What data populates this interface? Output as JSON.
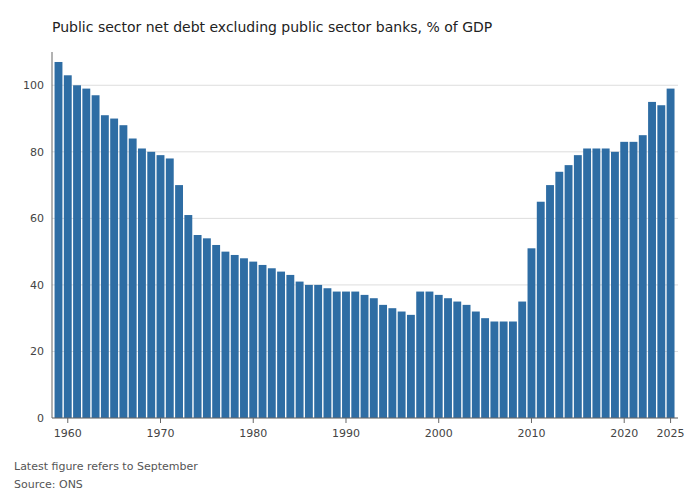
{
  "chart_data": {
    "type": "bar",
    "title": "Public sector net debt excluding public sector banks, % of GDP",
    "annotations": [
      "Latest figure refers to September",
      "Source: ONS"
    ],
    "x": [
      1959,
      1960,
      1961,
      1962,
      1963,
      1964,
      1965,
      1966,
      1967,
      1968,
      1969,
      1970,
      1971,
      1972,
      1973,
      1974,
      1975,
      1976,
      1977,
      1978,
      1979,
      1980,
      1981,
      1982,
      1983,
      1984,
      1985,
      1986,
      1987,
      1988,
      1989,
      1990,
      1991,
      1992,
      1993,
      1994,
      1995,
      1996,
      1997,
      1998,
      1999,
      2000,
      2001,
      2002,
      2003,
      2004,
      2005,
      2006,
      2007,
      2008,
      2009,
      2010,
      2011,
      2012,
      2013,
      2014,
      2015,
      2016,
      2017,
      2018,
      2019,
      2020,
      2021,
      2022,
      2023,
      2024,
      2025
    ],
    "values": [
      107,
      103,
      100,
      99,
      97,
      91,
      90,
      88,
      84,
      81,
      80,
      79,
      78,
      70,
      61,
      55,
      54,
      52,
      50,
      49,
      48,
      47,
      46,
      45,
      44,
      43,
      41,
      40,
      40,
      39,
      38,
      38,
      38,
      37,
      36,
      34,
      33,
      32,
      31,
      38,
      38,
      37,
      36,
      35,
      34,
      32,
      30,
      29,
      29,
      29,
      35,
      51,
      65,
      70,
      74,
      76,
      79,
      81,
      81,
      81,
      80,
      83,
      83,
      85,
      95,
      94,
      99
    ],
    "color": "#2e6da4",
    "xlim": [
      1958.3,
      2025.8
    ],
    "xticks": [
      1960,
      1970,
      1980,
      1990,
      2000,
      2010,
      2020,
      2025
    ],
    "ylim": [
      0,
      110
    ],
    "yticks": [
      0,
      20,
      40,
      60,
      80,
      100
    ],
    "grid": true
  }
}
